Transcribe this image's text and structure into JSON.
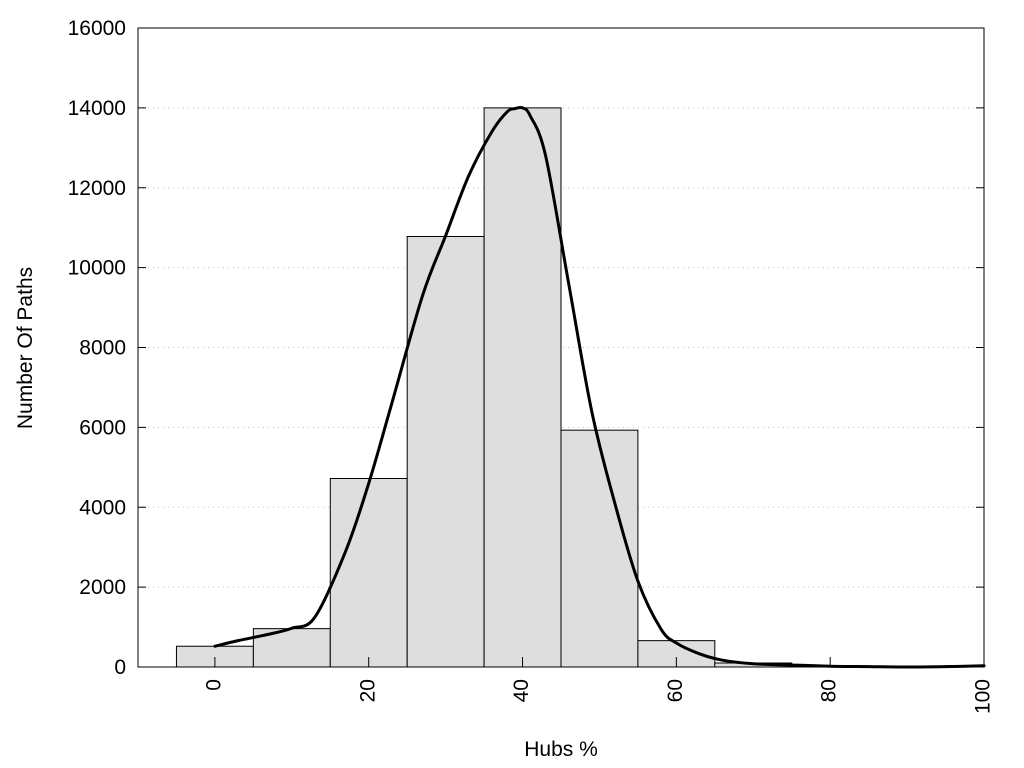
{
  "chart_data": {
    "type": "bar",
    "title": "",
    "xlabel": "Hubs %",
    "ylabel": "Number Of Paths",
    "xlim": [
      -10,
      100
    ],
    "ylim": [
      0,
      16000
    ],
    "x_ticks": [
      "0",
      "20",
      "40",
      "60",
      "80",
      "100"
    ],
    "y_ticks": [
      "0",
      "2000",
      "4000",
      "6000",
      "8000",
      "10000",
      "12000",
      "14000",
      "16000"
    ],
    "grid": "horizontal dotted",
    "legend": "none",
    "bin_width": 10,
    "categories": [
      0,
      10,
      20,
      30,
      40,
      50,
      60,
      70,
      80,
      90,
      100
    ],
    "values": [
      520,
      960,
      4720,
      10780,
      14000,
      5930,
      660,
      100,
      30,
      20,
      30
    ],
    "curve": {
      "x": [
        0,
        3,
        7,
        10,
        13,
        17,
        20,
        23,
        27,
        30,
        33,
        36,
        38,
        39,
        40,
        41,
        43,
        46,
        49,
        52,
        55,
        58,
        60,
        63,
        66,
        70,
        75,
        80,
        85,
        90,
        95,
        100
      ],
      "y": [
        520,
        660,
        820,
        970,
        1250,
        2900,
        4600,
        6600,
        9300,
        10800,
        12300,
        13400,
        13900,
        13980,
        14000,
        13800,
        12800,
        9600,
        6400,
        4100,
        2150,
        950,
        600,
        330,
        170,
        80,
        50,
        20,
        10,
        0,
        10,
        30
      ]
    },
    "colors": {
      "bar_fill": "#dedede",
      "line": "#000000"
    }
  }
}
